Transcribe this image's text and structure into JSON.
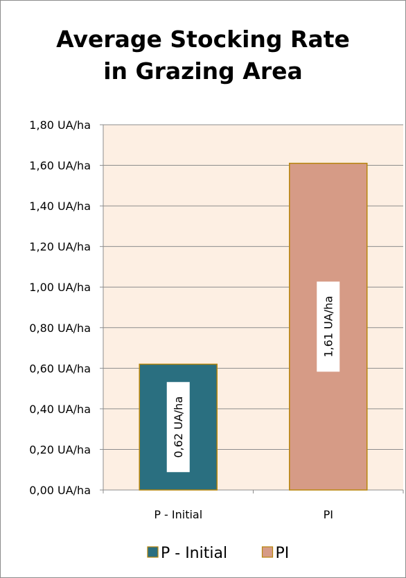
{
  "chart_data": {
    "type": "bar",
    "title_lines": [
      "Average Stocking Rate",
      "in Grazing Area"
    ],
    "categories": [
      "P - Initial",
      "PI"
    ],
    "series": [
      {
        "name": "P - Initial",
        "category": "P - Initial",
        "value": 0.62,
        "label": "0,62 UA/ha",
        "color": "#2a6f80"
      },
      {
        "name": "PI",
        "category": "PI",
        "value": 1.61,
        "label": "1,61 UA/ha",
        "color": "#d69b86"
      }
    ],
    "y_ticks": [
      {
        "value": 0.0,
        "label": "0,00 UA/ha"
      },
      {
        "value": 0.2,
        "label": "0,20 UA/ha"
      },
      {
        "value": 0.4,
        "label": "0,40 UA/ha"
      },
      {
        "value": 0.6,
        "label": "0,60 UA/ha"
      },
      {
        "value": 0.8,
        "label": "0,80 UA/ha"
      },
      {
        "value": 1.0,
        "label": "1,00 UA/ha"
      },
      {
        "value": 1.2,
        "label": "1,20 UA/ha"
      },
      {
        "value": 1.4,
        "label": "1,40 UA/ha"
      },
      {
        "value": 1.6,
        "label": "1,60 UA/ha"
      },
      {
        "value": 1.8,
        "label": "1,80 UA/ha"
      }
    ],
    "ylim": [
      0,
      1.8
    ],
    "xlabel": "",
    "ylabel": "",
    "grid": true,
    "legend_position": "bottom",
    "plot_background": "#fdefe3",
    "bar_border_color": "#b8860b"
  }
}
